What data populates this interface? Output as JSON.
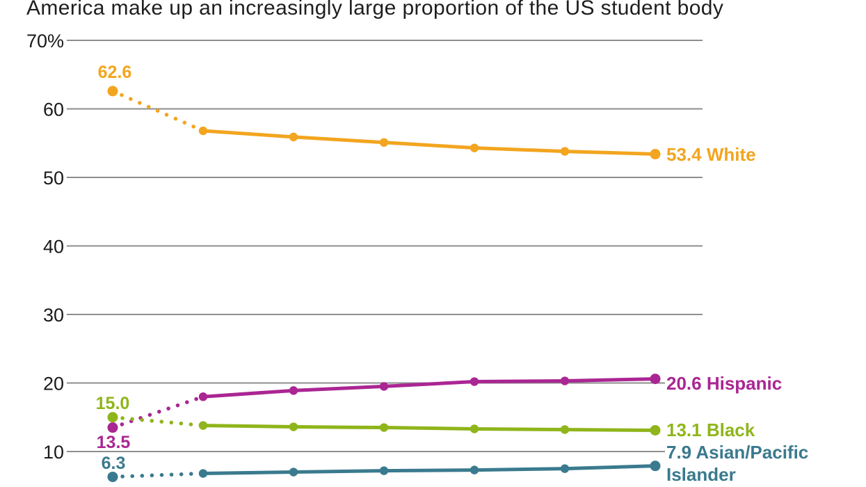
{
  "title": {
    "visible_text": "America make up an increasingly large proportion of the US student body"
  },
  "colors": {
    "background": "#FFFFFF",
    "gridline": "#8E8E8E",
    "axis_text": "#1A1A1A",
    "title_text": "#1E1E1E",
    "white_series": "#F2A51F",
    "hispanic_series": "#AA2693",
    "black_series": "#8FB51B",
    "asian_series": "#3A7A8E"
  },
  "chart_data": {
    "type": "line",
    "title": "America make up an increasingly large proportion of the US student body",
    "grid": true,
    "legend_position": "inline-end-labels",
    "y_axis": {
      "tick_values": [
        70,
        60,
        50,
        40,
        30,
        20,
        10
      ],
      "tick_labels": [
        "70%",
        "60",
        "50",
        "40",
        "30",
        "20",
        "10"
      ],
      "unit": "percent"
    },
    "x_axis": {
      "points_per_series": 7,
      "tick_labels_visible": false
    },
    "line_style_note": "first segment of each series is dotted (gap in data), remaining segments solid",
    "series": [
      {
        "name": "White",
        "color": "#F2A51F",
        "values": [
          62.6,
          56.8,
          55.9,
          55.1,
          54.3,
          53.8,
          53.4
        ],
        "start_label": "62.6",
        "start_label_position": "above",
        "end_label": "53.4 White",
        "end_label_lines": [
          "53.4 White"
        ]
      },
      {
        "name": "Hispanic",
        "color": "#AA2693",
        "values": [
          13.5,
          18.0,
          18.9,
          19.5,
          20.2,
          20.3,
          20.6
        ],
        "start_label": "13.5",
        "start_label_position": "below",
        "end_label": "20.6 Hispanic",
        "end_label_lines": [
          "20.6 Hispanic"
        ]
      },
      {
        "name": "Black",
        "color": "#8FB51B",
        "values": [
          15.0,
          13.8,
          13.6,
          13.5,
          13.3,
          13.2,
          13.1
        ],
        "start_label": "15.0",
        "start_label_position": "above",
        "end_label": "13.1 Black",
        "end_label_lines": [
          "13.1 Black"
        ]
      },
      {
        "name": "Asian/Pacific Islander",
        "color": "#3A7A8E",
        "values": [
          6.3,
          6.8,
          7.0,
          7.2,
          7.3,
          7.5,
          7.9
        ],
        "start_label": "6.3",
        "start_label_position": "above",
        "end_label": "7.9 Asian/Pacific Islander",
        "end_label_lines": [
          "7.9 Asian/Pacific",
          "Islander"
        ]
      }
    ]
  }
}
